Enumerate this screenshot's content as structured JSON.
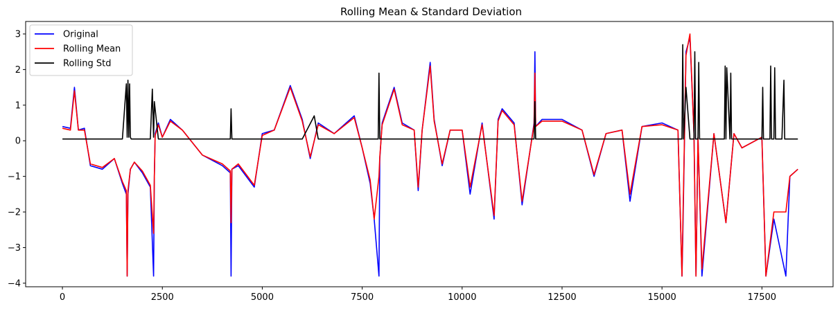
{
  "chart_data": {
    "type": "line",
    "title": "Rolling Mean & Standard Deviation",
    "xlabel": "",
    "ylabel": "",
    "xlim": [
      -920,
      19280
    ],
    "ylim": [
      -4.1,
      3.35
    ],
    "xticks": [
      0,
      2500,
      5000,
      7500,
      10000,
      12500,
      15000,
      17500
    ],
    "xtick_labels": [
      "0",
      "2500",
      "5000",
      "7500",
      "10000",
      "12500",
      "15000",
      "17500"
    ],
    "yticks": [
      -4,
      -3,
      -2,
      -1,
      0,
      1,
      2,
      3
    ],
    "ytick_labels": [
      "−4",
      "−3",
      "−2",
      "−1",
      "0",
      "1",
      "2",
      "3"
    ],
    "grid": false,
    "legend": {
      "position": "top-left"
    },
    "series": [
      {
        "name": "Original",
        "color": "#0000ff",
        "x": [
          0,
          200,
          300,
          400,
          550,
          700,
          1000,
          1300,
          1500,
          1600,
          1620,
          1640,
          1700,
          1800,
          2000,
          2200,
          2280,
          2300,
          2320,
          2400,
          2500,
          2700,
          3000,
          3500,
          4000,
          4200,
          4220,
          4240,
          4400,
          4800,
          5000,
          5300,
          5700,
          6000,
          6200,
          6400,
          6800,
          7300,
          7500,
          7700,
          7800,
          7920,
          7940,
          8000,
          8300,
          8500,
          8800,
          8900,
          9000,
          9200,
          9300,
          9500,
          9700,
          10000,
          10200,
          10500,
          10800,
          10900,
          11000,
          11300,
          11500,
          11800,
          11820,
          11840,
          12000,
          12500,
          13000,
          13300,
          13600,
          14000,
          14200,
          14500,
          15000,
          15400,
          15500,
          15520,
          15600,
          15700,
          15800,
          15850,
          15900,
          16000,
          16300,
          16600,
          16800,
          17000,
          17500,
          17600,
          17800,
          18100,
          18200,
          18400
        ],
        "y": [
          0.4,
          0.35,
          1.5,
          0.3,
          0.35,
          -0.7,
          -0.8,
          -0.5,
          -1.2,
          -1.5,
          -3.8,
          -1.5,
          -0.8,
          -0.6,
          -0.9,
          -1.3,
          -3.8,
          -1.0,
          0.2,
          0.5,
          0.1,
          0.6,
          0.3,
          -0.4,
          -0.7,
          -0.9,
          -3.8,
          -0.8,
          -0.7,
          -1.3,
          0.2,
          0.3,
          1.55,
          0.6,
          -0.5,
          0.5,
          0.2,
          0.7,
          -0.2,
          -1.2,
          -2.2,
          -3.8,
          -0.5,
          0.5,
          1.5,
          0.5,
          0.3,
          -1.4,
          0.3,
          2.2,
          0.6,
          -0.7,
          0.3,
          0.3,
          -1.5,
          0.5,
          -2.2,
          0.6,
          0.9,
          0.5,
          -1.8,
          0.5,
          2.5,
          0.4,
          0.6,
          0.6,
          0.3,
          -1.0,
          0.2,
          0.3,
          -1.7,
          0.4,
          0.5,
          0.3,
          -3.8,
          -2.8,
          2.5,
          2.9,
          0.2,
          -3.8,
          0.1,
          -3.8,
          0.2,
          -2.3,
          0.2,
          -0.2,
          0.1,
          -3.8,
          -2.2,
          -3.8,
          -1.0,
          -0.8
        ]
      },
      {
        "name": "Rolling Mean",
        "color": "#ff0000",
        "x": [
          0,
          200,
          300,
          400,
          550,
          700,
          1000,
          1300,
          1500,
          1600,
          1620,
          1640,
          1700,
          1800,
          2000,
          2200,
          2280,
          2300,
          2320,
          2400,
          2500,
          2700,
          3000,
          3500,
          4000,
          4200,
          4220,
          4240,
          4400,
          4800,
          5000,
          5300,
          5700,
          6000,
          6200,
          6400,
          6800,
          7300,
          7500,
          7700,
          7800,
          7920,
          7940,
          8000,
          8300,
          8500,
          8800,
          8900,
          9000,
          9200,
          9300,
          9500,
          9700,
          10000,
          10200,
          10500,
          10800,
          10900,
          11000,
          11300,
          11500,
          11800,
          11820,
          11840,
          12000,
          12500,
          13000,
          13300,
          13600,
          14000,
          14200,
          14500,
          15000,
          15400,
          15500,
          15520,
          15600,
          15700,
          15800,
          15850,
          15900,
          16000,
          16300,
          16600,
          16800,
          17000,
          17500,
          17600,
          17800,
          18100,
          18200,
          18400
        ],
        "y": [
          0.35,
          0.3,
          1.4,
          0.3,
          0.3,
          -0.65,
          -0.75,
          -0.5,
          -1.15,
          -1.4,
          -3.8,
          -1.4,
          -0.8,
          -0.6,
          -0.85,
          -1.25,
          -2.6,
          -1.0,
          0.15,
          0.45,
          0.1,
          0.55,
          0.3,
          -0.4,
          -0.65,
          -0.85,
          -2.3,
          -0.8,
          -0.65,
          -1.25,
          0.15,
          0.3,
          1.5,
          0.55,
          -0.45,
          0.45,
          0.2,
          0.65,
          -0.2,
          -1.1,
          -2.2,
          -1.0,
          -0.45,
          0.45,
          1.45,
          0.45,
          0.3,
          -1.3,
          0.3,
          2.1,
          0.55,
          -0.65,
          0.3,
          0.3,
          -1.3,
          0.45,
          -2.1,
          0.55,
          0.85,
          0.45,
          -1.7,
          0.45,
          1.9,
          0.4,
          0.55,
          0.55,
          0.3,
          -0.95,
          0.2,
          0.3,
          -1.5,
          0.4,
          0.45,
          0.3,
          -3.8,
          -2.5,
          2.4,
          3.0,
          0.2,
          -3.8,
          0.1,
          -3.6,
          0.2,
          -2.3,
          0.2,
          -0.2,
          0.1,
          -3.8,
          -2.0,
          -2.0,
          -1.0,
          -0.8
        ]
      },
      {
        "name": "Rolling Std",
        "color": "#000000",
        "x": [
          0,
          500,
          1000,
          1500,
          1600,
          1620,
          1640,
          1660,
          1680,
          1700,
          1720,
          1800,
          2200,
          2250,
          2280,
          2300,
          2400,
          2500,
          3000,
          3500,
          4000,
          4200,
          4220,
          4240,
          5000,
          6000,
          6300,
          6400,
          7000,
          7500,
          7800,
          7900,
          7920,
          7940,
          8000,
          8500,
          9000,
          9500,
          10000,
          10500,
          11000,
          11500,
          11800,
          11820,
          11840,
          12000,
          13000,
          14000,
          14500,
          15000,
          15400,
          15500,
          15520,
          15540,
          15600,
          15700,
          15800,
          15820,
          15840,
          15900,
          15920,
          15940,
          16000,
          16300,
          16560,
          16580,
          16600,
          16620,
          16700,
          16720,
          16740,
          16800,
          17000,
          17400,
          17500,
          17520,
          17540,
          17700,
          17720,
          17740,
          17800,
          17820,
          17840,
          18000,
          18050,
          18070,
          18100,
          18200,
          18400
        ],
        "y": [
          0.05,
          0.05,
          0.05,
          0.05,
          1.6,
          0.1,
          1.7,
          0.1,
          1.6,
          0.1,
          0.05,
          0.05,
          0.05,
          1.45,
          0.1,
          1.1,
          0.05,
          0.05,
          0.05,
          0.05,
          0.05,
          0.05,
          0.9,
          0.05,
          0.05,
          0.05,
          0.7,
          0.05,
          0.05,
          0.05,
          0.05,
          0.05,
          1.9,
          0.05,
          0.05,
          0.05,
          0.05,
          0.05,
          0.05,
          0.05,
          0.05,
          0.05,
          0.05,
          1.1,
          0.05,
          0.05,
          0.05,
          0.05,
          0.05,
          0.05,
          0.05,
          0.05,
          2.7,
          0.05,
          1.5,
          0.05,
          0.05,
          2.5,
          0.05,
          0.05,
          2.2,
          0.05,
          0.05,
          0.05,
          0.05,
          2.1,
          0.05,
          2.05,
          0.05,
          1.9,
          0.05,
          0.05,
          0.05,
          0.05,
          0.05,
          1.5,
          0.05,
          0.05,
          2.1,
          0.05,
          0.05,
          2.05,
          0.05,
          0.05,
          1.7,
          0.05,
          0.05,
          0.05,
          0.05
        ]
      }
    ]
  }
}
